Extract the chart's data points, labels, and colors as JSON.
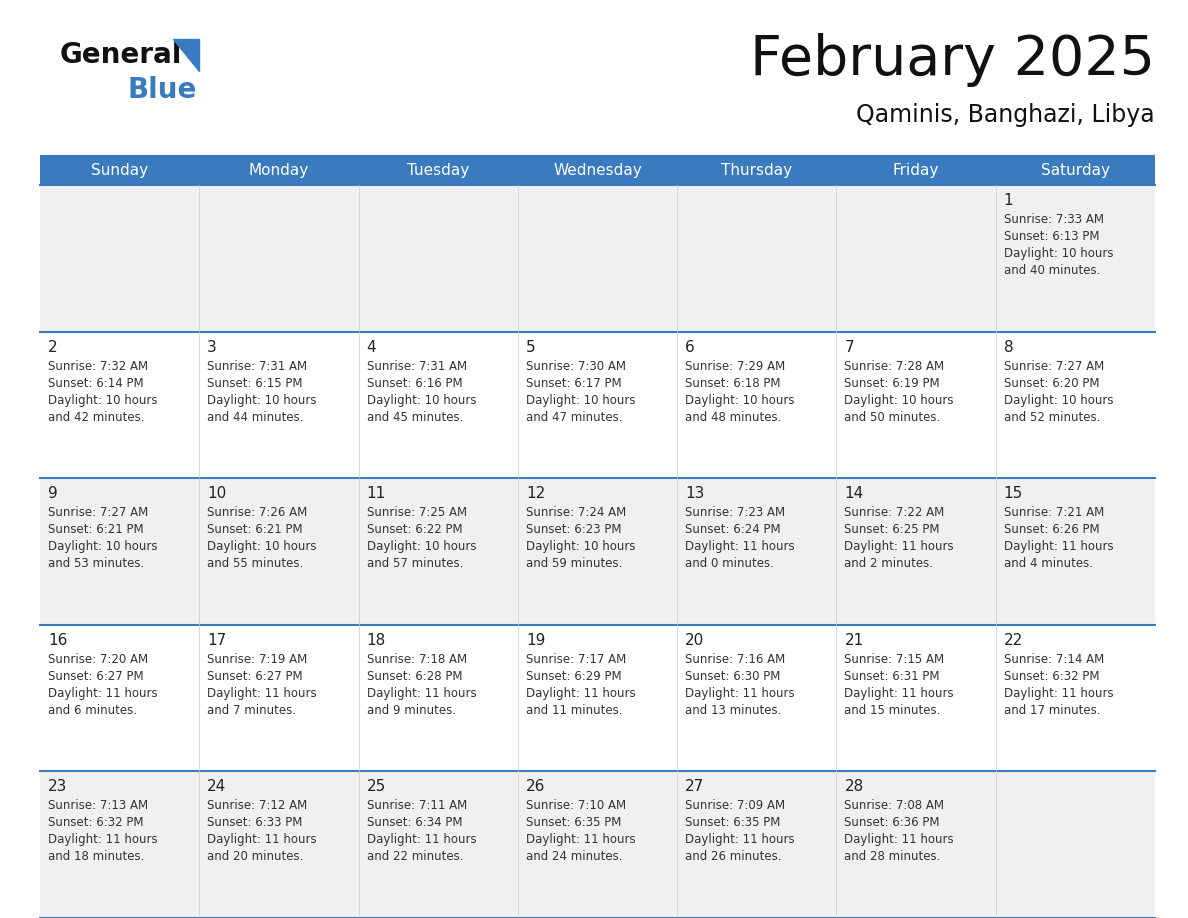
{
  "title": "February 2025",
  "subtitle": "Qaminis, Banghazi, Libya",
  "header_color": "#3a7abf",
  "header_text_color": "#ffffff",
  "day_names": [
    "Sunday",
    "Monday",
    "Tuesday",
    "Wednesday",
    "Thursday",
    "Friday",
    "Saturday"
  ],
  "background_color": "#ffffff",
  "cell_bg_light": "#f0f0f0",
  "cell_bg_white": "#ffffff",
  "grid_line_color": "#3a7abf",
  "date_color": "#222222",
  "text_color": "#333333",
  "days": [
    {
      "date": 1,
      "col": 6,
      "row": 0,
      "sunrise": "7:33 AM",
      "sunset": "6:13 PM",
      "daylight": "10 hours and 40 minutes."
    },
    {
      "date": 2,
      "col": 0,
      "row": 1,
      "sunrise": "7:32 AM",
      "sunset": "6:14 PM",
      "daylight": "10 hours and 42 minutes."
    },
    {
      "date": 3,
      "col": 1,
      "row": 1,
      "sunrise": "7:31 AM",
      "sunset": "6:15 PM",
      "daylight": "10 hours and 44 minutes."
    },
    {
      "date": 4,
      "col": 2,
      "row": 1,
      "sunrise": "7:31 AM",
      "sunset": "6:16 PM",
      "daylight": "10 hours and 45 minutes."
    },
    {
      "date": 5,
      "col": 3,
      "row": 1,
      "sunrise": "7:30 AM",
      "sunset": "6:17 PM",
      "daylight": "10 hours and 47 minutes."
    },
    {
      "date": 6,
      "col": 4,
      "row": 1,
      "sunrise": "7:29 AM",
      "sunset": "6:18 PM",
      "daylight": "10 hours and 48 minutes."
    },
    {
      "date": 7,
      "col": 5,
      "row": 1,
      "sunrise": "7:28 AM",
      "sunset": "6:19 PM",
      "daylight": "10 hours and 50 minutes."
    },
    {
      "date": 8,
      "col": 6,
      "row": 1,
      "sunrise": "7:27 AM",
      "sunset": "6:20 PM",
      "daylight": "10 hours and 52 minutes."
    },
    {
      "date": 9,
      "col": 0,
      "row": 2,
      "sunrise": "7:27 AM",
      "sunset": "6:21 PM",
      "daylight": "10 hours and 53 minutes."
    },
    {
      "date": 10,
      "col": 1,
      "row": 2,
      "sunrise": "7:26 AM",
      "sunset": "6:21 PM",
      "daylight": "10 hours and 55 minutes."
    },
    {
      "date": 11,
      "col": 2,
      "row": 2,
      "sunrise": "7:25 AM",
      "sunset": "6:22 PM",
      "daylight": "10 hours and 57 minutes."
    },
    {
      "date": 12,
      "col": 3,
      "row": 2,
      "sunrise": "7:24 AM",
      "sunset": "6:23 PM",
      "daylight": "10 hours and 59 minutes."
    },
    {
      "date": 13,
      "col": 4,
      "row": 2,
      "sunrise": "7:23 AM",
      "sunset": "6:24 PM",
      "daylight": "11 hours and 0 minutes."
    },
    {
      "date": 14,
      "col": 5,
      "row": 2,
      "sunrise": "7:22 AM",
      "sunset": "6:25 PM",
      "daylight": "11 hours and 2 minutes."
    },
    {
      "date": 15,
      "col": 6,
      "row": 2,
      "sunrise": "7:21 AM",
      "sunset": "6:26 PM",
      "daylight": "11 hours and 4 minutes."
    },
    {
      "date": 16,
      "col": 0,
      "row": 3,
      "sunrise": "7:20 AM",
      "sunset": "6:27 PM",
      "daylight": "11 hours and 6 minutes."
    },
    {
      "date": 17,
      "col": 1,
      "row": 3,
      "sunrise": "7:19 AM",
      "sunset": "6:27 PM",
      "daylight": "11 hours and 7 minutes."
    },
    {
      "date": 18,
      "col": 2,
      "row": 3,
      "sunrise": "7:18 AM",
      "sunset": "6:28 PM",
      "daylight": "11 hours and 9 minutes."
    },
    {
      "date": 19,
      "col": 3,
      "row": 3,
      "sunrise": "7:17 AM",
      "sunset": "6:29 PM",
      "daylight": "11 hours and 11 minutes."
    },
    {
      "date": 20,
      "col": 4,
      "row": 3,
      "sunrise": "7:16 AM",
      "sunset": "6:30 PM",
      "daylight": "11 hours and 13 minutes."
    },
    {
      "date": 21,
      "col": 5,
      "row": 3,
      "sunrise": "7:15 AM",
      "sunset": "6:31 PM",
      "daylight": "11 hours and 15 minutes."
    },
    {
      "date": 22,
      "col": 6,
      "row": 3,
      "sunrise": "7:14 AM",
      "sunset": "6:32 PM",
      "daylight": "11 hours and 17 minutes."
    },
    {
      "date": 23,
      "col": 0,
      "row": 4,
      "sunrise": "7:13 AM",
      "sunset": "6:32 PM",
      "daylight": "11 hours and 18 minutes."
    },
    {
      "date": 24,
      "col": 1,
      "row": 4,
      "sunrise": "7:12 AM",
      "sunset": "6:33 PM",
      "daylight": "11 hours and 20 minutes."
    },
    {
      "date": 25,
      "col": 2,
      "row": 4,
      "sunrise": "7:11 AM",
      "sunset": "6:34 PM",
      "daylight": "11 hours and 22 minutes."
    },
    {
      "date": 26,
      "col": 3,
      "row": 4,
      "sunrise": "7:10 AM",
      "sunset": "6:35 PM",
      "daylight": "11 hours and 24 minutes."
    },
    {
      "date": 27,
      "col": 4,
      "row": 4,
      "sunrise": "7:09 AM",
      "sunset": "6:35 PM",
      "daylight": "11 hours and 26 minutes."
    },
    {
      "date": 28,
      "col": 5,
      "row": 4,
      "sunrise": "7:08 AM",
      "sunset": "6:36 PM",
      "daylight": "11 hours and 28 minutes."
    }
  ]
}
